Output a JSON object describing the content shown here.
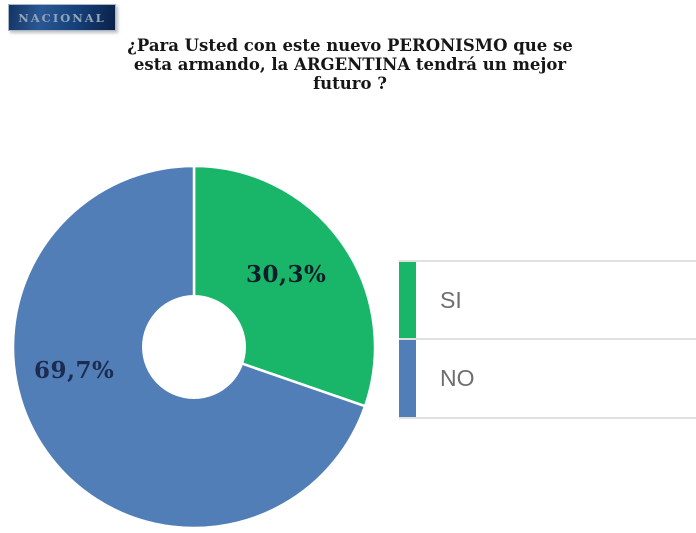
{
  "badge": {
    "label": "NACIONAL"
  },
  "title": "¿Para Usted con este nuevo PERONISMO que se esta armando, la ARGENTINA tendrá un mejor futuro ?",
  "chart_data": {
    "type": "pie",
    "subtype": "donut",
    "title": "¿Para Usted con este nuevo PERONISMO que se esta armando, la ARGENTINA tendrá un mejor futuro ?",
    "categories": [
      "SI",
      "NO"
    ],
    "values": [
      30.3,
      69.7
    ],
    "value_labels": [
      "30,3%",
      "69,7%"
    ],
    "colors": [
      "#19b669",
      "#527eb8"
    ],
    "start_angle_deg": 0,
    "direction": "clockwise",
    "hole_ratio": 0.29,
    "separator_color": "#ffffff",
    "legend_position": "right"
  },
  "legend": {
    "items": [
      {
        "label": "SI",
        "color": "#19b669"
      },
      {
        "label": "NO",
        "color": "#527eb8"
      }
    ]
  }
}
